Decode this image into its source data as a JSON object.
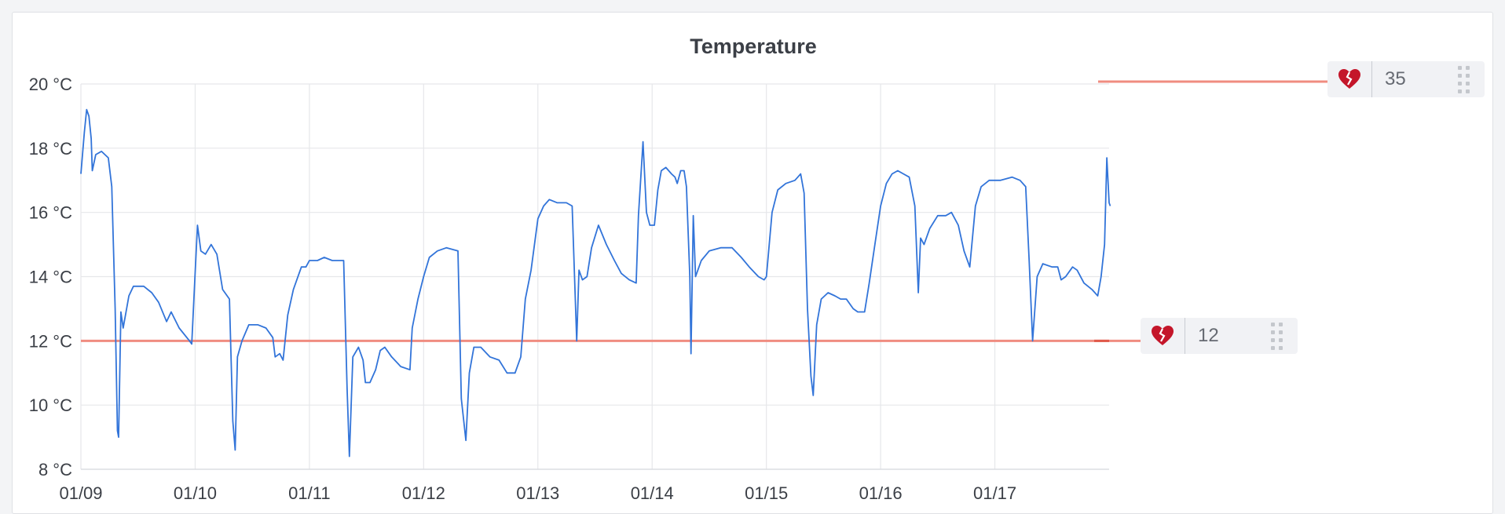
{
  "panel": {
    "title": "Temperature"
  },
  "thresholds": [
    {
      "value": 35,
      "label": "35",
      "color": "#f08c80",
      "icon": "broken-heart-icon"
    },
    {
      "value": 12,
      "label": "12",
      "color": "#f08c80",
      "icon": "broken-heart-icon"
    }
  ],
  "chart_data": {
    "type": "line",
    "title": "Temperature",
    "xlabel": "",
    "ylabel": "",
    "x_unit": "day",
    "ylim": [
      8,
      20
    ],
    "y_ticks": [
      "8 °C",
      "10 °C",
      "12 °C",
      "14 °C",
      "16 °C",
      "18 °C",
      "20 °C"
    ],
    "y_tick_values": [
      8,
      10,
      12,
      14,
      16,
      18,
      20
    ],
    "x_ticks": [
      "01/09",
      "01/10",
      "01/11",
      "01/12",
      "01/13",
      "01/14",
      "01/15",
      "01/16",
      "01/17"
    ],
    "grid": true,
    "series_color": "#3274d9",
    "threshold_color": "#f08c80",
    "threshold_line": 12,
    "series": [
      {
        "values": [
          [
            0.0,
            17.2
          ],
          [
            0.03,
            18.5
          ],
          [
            0.05,
            19.2
          ],
          [
            0.07,
            19.0
          ],
          [
            0.09,
            18.3
          ],
          [
            0.1,
            17.3
          ],
          [
            0.13,
            17.8
          ],
          [
            0.18,
            17.9
          ],
          [
            0.24,
            17.7
          ],
          [
            0.27,
            16.8
          ],
          [
            0.3,
            13.0
          ],
          [
            0.32,
            9.2
          ],
          [
            0.33,
            9.0
          ],
          [
            0.35,
            12.9
          ],
          [
            0.37,
            12.4
          ],
          [
            0.42,
            13.4
          ],
          [
            0.46,
            13.7
          ],
          [
            0.55,
            13.7
          ],
          [
            0.62,
            13.5
          ],
          [
            0.68,
            13.2
          ],
          [
            0.75,
            12.6
          ],
          [
            0.79,
            12.9
          ],
          [
            0.86,
            12.4
          ],
          [
            0.95,
            12.0
          ],
          [
            0.97,
            11.9
          ],
          [
            1.0,
            14.1
          ],
          [
            1.02,
            15.6
          ],
          [
            1.05,
            14.8
          ],
          [
            1.09,
            14.7
          ],
          [
            1.14,
            15.0
          ],
          [
            1.19,
            14.7
          ],
          [
            1.24,
            13.6
          ],
          [
            1.3,
            13.3
          ],
          [
            1.33,
            9.5
          ],
          [
            1.35,
            8.6
          ],
          [
            1.37,
            11.5
          ],
          [
            1.41,
            12.0
          ],
          [
            1.47,
            12.5
          ],
          [
            1.55,
            12.5
          ],
          [
            1.62,
            12.4
          ],
          [
            1.68,
            12.1
          ],
          [
            1.7,
            11.5
          ],
          [
            1.74,
            11.6
          ],
          [
            1.77,
            11.4
          ],
          [
            1.81,
            12.8
          ],
          [
            1.86,
            13.6
          ],
          [
            1.93,
            14.3
          ],
          [
            1.97,
            14.3
          ],
          [
            2.0,
            14.5
          ],
          [
            2.07,
            14.5
          ],
          [
            2.13,
            14.6
          ],
          [
            2.2,
            14.5
          ],
          [
            2.3,
            14.5
          ],
          [
            2.33,
            10.5
          ],
          [
            2.35,
            8.4
          ],
          [
            2.38,
            11.5
          ],
          [
            2.43,
            11.8
          ],
          [
            2.47,
            11.4
          ],
          [
            2.49,
            10.7
          ],
          [
            2.53,
            10.7
          ],
          [
            2.58,
            11.1
          ],
          [
            2.62,
            11.7
          ],
          [
            2.66,
            11.8
          ],
          [
            2.72,
            11.5
          ],
          [
            2.8,
            11.2
          ],
          [
            2.88,
            11.1
          ],
          [
            2.9,
            12.4
          ],
          [
            2.95,
            13.3
          ],
          [
            3.0,
            14.0
          ],
          [
            3.05,
            14.6
          ],
          [
            3.12,
            14.8
          ],
          [
            3.2,
            14.9
          ],
          [
            3.3,
            14.8
          ],
          [
            3.33,
            10.2
          ],
          [
            3.37,
            8.9
          ],
          [
            3.4,
            11.0
          ],
          [
            3.44,
            11.8
          ],
          [
            3.5,
            11.8
          ],
          [
            3.58,
            11.5
          ],
          [
            3.66,
            11.4
          ],
          [
            3.73,
            11.0
          ],
          [
            3.8,
            11.0
          ],
          [
            3.85,
            11.5
          ],
          [
            3.89,
            13.3
          ],
          [
            3.94,
            14.2
          ],
          [
            4.0,
            15.8
          ],
          [
            4.05,
            16.2
          ],
          [
            4.1,
            16.4
          ],
          [
            4.17,
            16.3
          ],
          [
            4.25,
            16.3
          ],
          [
            4.3,
            16.2
          ],
          [
            4.34,
            12.0
          ],
          [
            4.36,
            14.2
          ],
          [
            4.39,
            13.9
          ],
          [
            4.43,
            14.0
          ],
          [
            4.47,
            14.9
          ],
          [
            4.53,
            15.6
          ],
          [
            4.6,
            15.0
          ],
          [
            4.67,
            14.5
          ],
          [
            4.73,
            14.1
          ],
          [
            4.8,
            13.9
          ],
          [
            4.86,
            13.8
          ],
          [
            4.88,
            15.9
          ],
          [
            4.92,
            18.2
          ],
          [
            4.95,
            16.0
          ],
          [
            4.98,
            15.6
          ],
          [
            5.02,
            15.6
          ],
          [
            5.05,
            16.7
          ],
          [
            5.08,
            17.3
          ],
          [
            5.12,
            17.4
          ],
          [
            5.17,
            17.2
          ],
          [
            5.2,
            17.1
          ],
          [
            5.22,
            16.9
          ],
          [
            5.25,
            17.3
          ],
          [
            5.28,
            17.3
          ],
          [
            5.3,
            16.8
          ],
          [
            5.33,
            14.0
          ],
          [
            5.34,
            11.6
          ],
          [
            5.36,
            15.9
          ],
          [
            5.38,
            14.0
          ],
          [
            5.43,
            14.5
          ],
          [
            5.5,
            14.8
          ],
          [
            5.6,
            14.9
          ],
          [
            5.7,
            14.9
          ],
          [
            5.78,
            14.6
          ],
          [
            5.85,
            14.3
          ],
          [
            5.93,
            14.0
          ],
          [
            5.98,
            13.9
          ],
          [
            6.0,
            14.0
          ],
          [
            6.05,
            16.0
          ],
          [
            6.1,
            16.7
          ],
          [
            6.17,
            16.9
          ],
          [
            6.25,
            17.0
          ],
          [
            6.3,
            17.2
          ],
          [
            6.33,
            16.6
          ],
          [
            6.36,
            13.0
          ],
          [
            6.39,
            10.9
          ],
          [
            6.41,
            10.3
          ],
          [
            6.44,
            12.5
          ],
          [
            6.48,
            13.3
          ],
          [
            6.54,
            13.5
          ],
          [
            6.6,
            13.4
          ],
          [
            6.65,
            13.3
          ],
          [
            6.7,
            13.3
          ],
          [
            6.76,
            13.0
          ],
          [
            6.8,
            12.9
          ],
          [
            6.86,
            12.9
          ],
          [
            6.9,
            13.8
          ],
          [
            6.95,
            15.0
          ],
          [
            7.0,
            16.2
          ],
          [
            7.05,
            16.9
          ],
          [
            7.1,
            17.2
          ],
          [
            7.15,
            17.3
          ],
          [
            7.2,
            17.2
          ],
          [
            7.25,
            17.1
          ],
          [
            7.3,
            16.2
          ],
          [
            7.33,
            13.5
          ],
          [
            7.35,
            15.2
          ],
          [
            7.38,
            15.0
          ],
          [
            7.43,
            15.5
          ],
          [
            7.5,
            15.9
          ],
          [
            7.57,
            15.9
          ],
          [
            7.62,
            16.0
          ],
          [
            7.68,
            15.6
          ],
          [
            7.73,
            14.8
          ],
          [
            7.78,
            14.3
          ],
          [
            7.83,
            16.2
          ],
          [
            7.88,
            16.8
          ],
          [
            7.95,
            17.0
          ],
          [
            8.05,
            17.0
          ],
          [
            8.15,
            17.1
          ],
          [
            8.22,
            17.0
          ],
          [
            8.27,
            16.8
          ],
          [
            8.3,
            14.5
          ],
          [
            8.33,
            12.0
          ],
          [
            8.37,
            14.0
          ],
          [
            8.42,
            14.4
          ],
          [
            8.5,
            14.3
          ],
          [
            8.55,
            14.3
          ],
          [
            8.58,
            13.9
          ],
          [
            8.62,
            14.0
          ],
          [
            8.68,
            14.3
          ],
          [
            8.72,
            14.2
          ],
          [
            8.78,
            13.8
          ],
          [
            8.85,
            13.6
          ],
          [
            8.9,
            13.4
          ],
          [
            8.93,
            14.0
          ],
          [
            8.96,
            15.0
          ],
          [
            8.98,
            17.7
          ],
          [
            9.0,
            16.3
          ],
          [
            9.01,
            16.2
          ]
        ]
      }
    ]
  }
}
